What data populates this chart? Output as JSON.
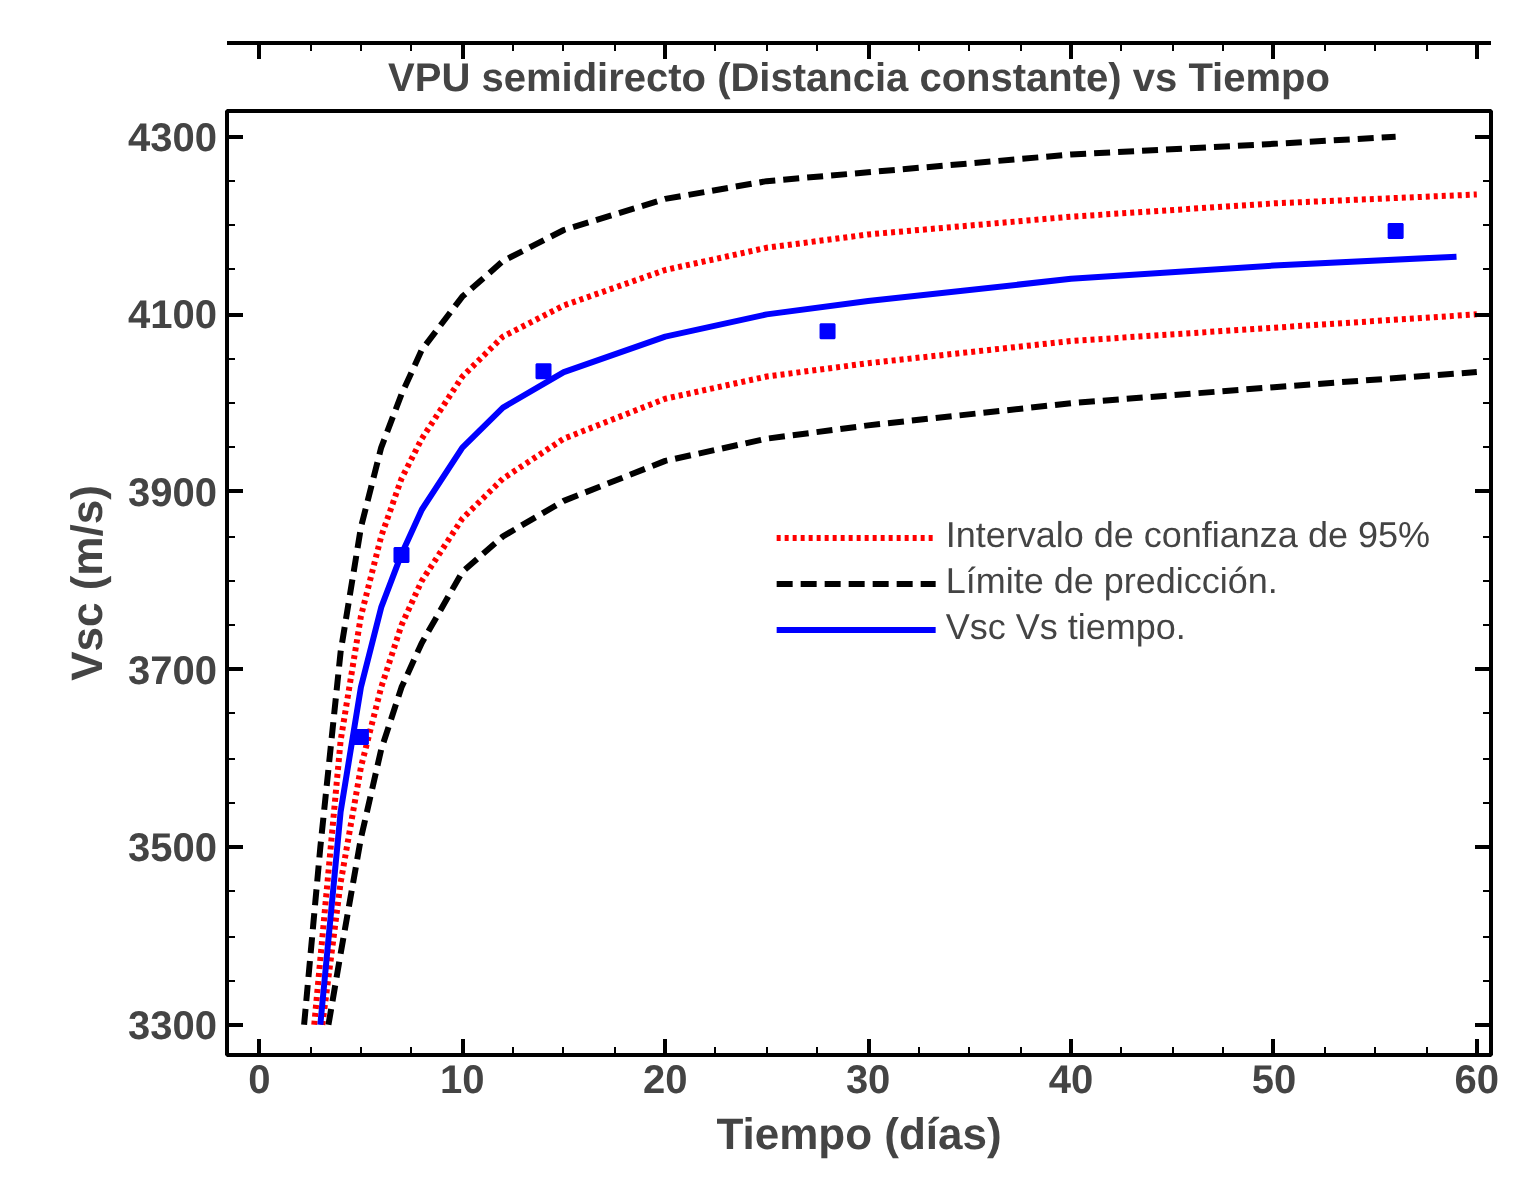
{
  "chart_data": {
    "type": "line",
    "title": "VPU semidirecto (Distancia constante) vs Tiempo",
    "xlabel": "Tiempo (días)",
    "ylabel": "Vsc (m/s)",
    "xlim": [
      -1.6,
      60.7
    ],
    "ylim": [
      3266,
      4329
    ],
    "xticks": [
      0,
      10,
      20,
      30,
      40,
      50,
      60
    ],
    "yticks": [
      3300,
      3500,
      3700,
      3900,
      4100,
      4300
    ],
    "legend": "right",
    "grid": false,
    "series": [
      {
        "name": "Intervalo de confianza de 95%",
        "color": "#ff0000",
        "line_style": "dotted",
        "x": [
          2.7,
          4,
          5,
          6,
          7,
          8,
          10,
          12,
          15,
          20,
          25,
          30,
          40,
          50,
          60
        ],
        "values": [
          3300,
          3620,
          3760,
          3850,
          3915,
          3960,
          4030,
          4075,
          4110,
          4150,
          4175,
          4190,
          4210,
          4225,
          4235
        ]
      },
      {
        "color": "#ff0000",
        "line_style": "dotted",
        "x": [
          3.1,
          4,
          5,
          6,
          7,
          8,
          10,
          12,
          15,
          20,
          25,
          30,
          40,
          50,
          60
        ],
        "values": [
          3300,
          3460,
          3590,
          3680,
          3750,
          3800,
          3870,
          3915,
          3960,
          4005,
          4030,
          4045,
          4070,
          4085,
          4100
        ]
      },
      {
        "name": "Límite de predicción.",
        "color": "#000000",
        "line_style": "dashed",
        "x": [
          2.2,
          3,
          4,
          5,
          6,
          7,
          8,
          10,
          12,
          15,
          20,
          25,
          30,
          40,
          50,
          56
        ],
        "values": [
          3300,
          3500,
          3720,
          3860,
          3950,
          4010,
          4060,
          4120,
          4160,
          4195,
          4230,
          4250,
          4260,
          4280,
          4292,
          4300
        ]
      },
      {
        "color": "#000000",
        "line_style": "dashed",
        "x": [
          3.4,
          4,
          5,
          6,
          7,
          8,
          10,
          12,
          15,
          20,
          25,
          30,
          40,
          50,
          60
        ],
        "values": [
          3300,
          3380,
          3510,
          3610,
          3680,
          3730,
          3810,
          3850,
          3890,
          3935,
          3960,
          3975,
          4000,
          4018,
          4035
        ]
      },
      {
        "name": "Vsc Vs tiempo.",
        "color": "#0000ff",
        "line_style": "solid",
        "x": [
          3,
          4,
          5,
          6,
          7,
          8,
          10,
          12,
          15,
          20,
          25,
          30,
          40,
          50,
          59
        ],
        "values": [
          3300,
          3540,
          3680,
          3770,
          3830,
          3880,
          3950,
          3995,
          4035,
          4075,
          4100,
          4115,
          4140,
          4155,
          4165
        ]
      },
      {
        "type": "scatter",
        "marker": "square",
        "color": "#0000ff",
        "x": [
          5,
          7,
          14,
          28,
          56
        ],
        "values": [
          3624,
          3829,
          4036,
          4081,
          4194
        ]
      }
    ]
  }
}
